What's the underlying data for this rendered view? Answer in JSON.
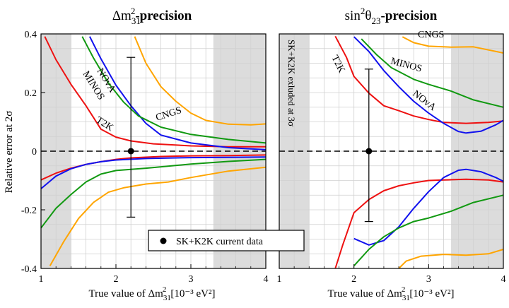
{
  "colors": {
    "background": "#ffffff",
    "grid": "#d0d0d0",
    "shade": "#dcdcdc",
    "T2K": "#ee1111",
    "NOvA": "#1111ee",
    "MINOS": "#119911",
    "CNGS": "#ffa500",
    "data": "#000000"
  },
  "chart_data": [
    {
      "type": "line",
      "title_prefix": "Δm",
      "title_sub": "31",
      "title_sup": "2",
      "title_suffix": "-precision",
      "xlabel_prefix": "True value of Δm",
      "xlabel_sub": "31",
      "xlabel_sup": "2",
      "xlabel_unit": "[10⁻³ eV²]",
      "ylabel": "Relative error at 2σ",
      "xlim": [
        1,
        4
      ],
      "ylim": [
        -0.4,
        0.4
      ],
      "x_ticks": [
        "1",
        "2",
        "3",
        "4"
      ],
      "y_ticks": [
        "-0.4",
        "-0.2",
        "0",
        "0.2",
        "0.4"
      ],
      "grid": true,
      "shaded_x_ranges": [
        [
          1,
          1.4
        ],
        [
          3.3,
          4
        ]
      ],
      "reference_line_y": 0,
      "series": [
        {
          "name": "T2K",
          "color_key": "T2K",
          "upper": [
            [
              1.05,
              0.391
            ],
            [
              1.2,
              0.312
            ],
            [
              1.4,
              0.228
            ],
            [
              1.6,
              0.155
            ],
            [
              1.8,
              0.075
            ],
            [
              2.0,
              0.048
            ],
            [
              2.2,
              0.035
            ],
            [
              2.5,
              0.025
            ],
            [
              3.0,
              0.018
            ],
            [
              3.5,
              0.015
            ],
            [
              4.0,
              0.015
            ]
          ],
          "lower": [
            [
              1.0,
              -0.098
            ],
            [
              1.2,
              -0.075
            ],
            [
              1.4,
              -0.058
            ],
            [
              1.6,
              -0.045
            ],
            [
              1.8,
              -0.036
            ],
            [
              2.0,
              -0.028
            ],
            [
              2.2,
              -0.023
            ],
            [
              2.6,
              -0.018
            ],
            [
              3.0,
              -0.016
            ],
            [
              3.5,
              -0.015
            ],
            [
              4.0,
              -0.013
            ]
          ]
        },
        {
          "name": "NOvA",
          "color_key": "NOvA",
          "upper": [
            [
              1.65,
              0.391
            ],
            [
              1.8,
              0.315
            ],
            [
              2.0,
              0.225
            ],
            [
              2.2,
              0.155
            ],
            [
              2.4,
              0.095
            ],
            [
              2.6,
              0.055
            ],
            [
              3.0,
              0.028
            ],
            [
              3.5,
              0.012
            ],
            [
              4.0,
              0.005
            ]
          ],
          "lower": [
            [
              1.0,
              -0.128
            ],
            [
              1.2,
              -0.085
            ],
            [
              1.4,
              -0.06
            ],
            [
              1.6,
              -0.045
            ],
            [
              1.8,
              -0.036
            ],
            [
              2.0,
              -0.03
            ],
            [
              2.4,
              -0.025
            ],
            [
              3.0,
              -0.022
            ],
            [
              3.5,
              -0.021
            ],
            [
              4.0,
              -0.02
            ]
          ]
        },
        {
          "name": "MINOS",
          "color_key": "MINOS",
          "upper": [
            [
              1.55,
              0.391
            ],
            [
              1.7,
              0.318
            ],
            [
              1.9,
              0.232
            ],
            [
              2.1,
              0.168
            ],
            [
              2.3,
              0.12
            ],
            [
              2.6,
              0.082
            ],
            [
              3.0,
              0.057
            ],
            [
              3.5,
              0.04
            ],
            [
              4.0,
              0.028
            ]
          ],
          "lower": [
            [
              1.0,
              -0.262
            ],
            [
              1.2,
              -0.195
            ],
            [
              1.4,
              -0.148
            ],
            [
              1.6,
              -0.105
            ],
            [
              1.8,
              -0.078
            ],
            [
              2.0,
              -0.066
            ],
            [
              2.4,
              -0.058
            ],
            [
              3.0,
              -0.044
            ],
            [
              3.5,
              -0.035
            ],
            [
              4.0,
              -0.028
            ]
          ]
        },
        {
          "name": "CNGS",
          "color_key": "CNGS",
          "upper": [
            [
              2.25,
              0.391
            ],
            [
              2.4,
              0.3
            ],
            [
              2.6,
              0.22
            ],
            [
              2.8,
              0.17
            ],
            [
              3.0,
              0.13
            ],
            [
              3.2,
              0.105
            ],
            [
              3.5,
              0.092
            ],
            [
              3.8,
              0.09
            ],
            [
              4.0,
              0.093
            ]
          ],
          "lower": [
            [
              1.12,
              -0.391
            ],
            [
              1.3,
              -0.31
            ],
            [
              1.5,
              -0.23
            ],
            [
              1.7,
              -0.175
            ],
            [
              1.9,
              -0.14
            ],
            [
              2.1,
              -0.125
            ],
            [
              2.4,
              -0.112
            ],
            [
              2.7,
              -0.105
            ],
            [
              3.0,
              -0.09
            ],
            [
              3.5,
              -0.068
            ],
            [
              4.0,
              -0.055
            ]
          ]
        }
      ],
      "data_point": {
        "x": 2.2,
        "y": 0,
        "err_up": 0.32,
        "err_down": -0.225
      },
      "legend": {
        "label": "SK+K2K current data",
        "position": "bottom-center"
      }
    },
    {
      "type": "line",
      "title_prefix": "sin",
      "title_sup": "2",
      "title_theta": "θ",
      "title_sub": "23",
      "title_suffix": "-precision",
      "xlabel_prefix": "True value of Δm",
      "xlabel_sub": "31",
      "xlabel_sup": "2",
      "xlabel_unit": "[10⁻³ eV²]",
      "xlim": [
        1,
        4
      ],
      "ylim": [
        -0.4,
        0.4
      ],
      "x_ticks": [
        "1",
        "2",
        "3",
        "4"
      ],
      "grid": true,
      "shaded_x_ranges": [
        [
          1,
          1.4
        ],
        [
          3.3,
          4
        ]
      ],
      "reference_line_y": 0,
      "excluded_note": "SK+K2K exluded at 3σ",
      "series": [
        {
          "name": "T2K",
          "color_key": "T2K",
          "upper": [
            [
              1.75,
              0.392
            ],
            [
              1.9,
              0.32
            ],
            [
              2.0,
              0.255
            ],
            [
              2.2,
              0.198
            ],
            [
              2.4,
              0.155
            ],
            [
              2.6,
              0.138
            ],
            [
              2.8,
              0.12
            ],
            [
              3.0,
              0.108
            ],
            [
              3.2,
              0.098
            ],
            [
              3.5,
              0.095
            ],
            [
              3.8,
              0.098
            ],
            [
              4.0,
              0.103
            ]
          ],
          "lower": [
            [
              1.75,
              -0.4
            ],
            [
              1.85,
              -0.32
            ],
            [
              2.0,
              -0.21
            ],
            [
              2.2,
              -0.165
            ],
            [
              2.4,
              -0.135
            ],
            [
              2.6,
              -0.118
            ],
            [
              2.8,
              -0.108
            ],
            [
              3.0,
              -0.1
            ],
            [
              3.2,
              -0.098
            ],
            [
              3.5,
              -0.096
            ],
            [
              3.8,
              -0.098
            ],
            [
              4.0,
              -0.105
            ]
          ]
        },
        {
          "name": "NOvA",
          "color_key": "NOvA",
          "upper": [
            [
              2.0,
              0.39
            ],
            [
              2.2,
              0.34
            ],
            [
              2.4,
              0.275
            ],
            [
              2.6,
              0.22
            ],
            [
              2.8,
              0.17
            ],
            [
              3.0,
              0.13
            ],
            [
              3.2,
              0.095
            ],
            [
              3.4,
              0.067
            ],
            [
              3.5,
              0.062
            ],
            [
              3.7,
              0.068
            ],
            [
              3.9,
              0.09
            ],
            [
              4.0,
              0.105
            ]
          ],
          "lower": [
            [
              2.0,
              -0.298
            ],
            [
              2.2,
              -0.32
            ],
            [
              2.4,
              -0.305
            ],
            [
              2.6,
              -0.258
            ],
            [
              2.8,
              -0.195
            ],
            [
              3.0,
              -0.138
            ],
            [
              3.2,
              -0.09
            ],
            [
              3.4,
              -0.065
            ],
            [
              3.5,
              -0.062
            ],
            [
              3.7,
              -0.07
            ],
            [
              3.9,
              -0.09
            ],
            [
              4.0,
              -0.103
            ]
          ]
        },
        {
          "name": "MINOS",
          "color_key": "MINOS",
          "upper": [
            [
              2.1,
              0.383
            ],
            [
              2.3,
              0.33
            ],
            [
              2.5,
              0.285
            ],
            [
              2.8,
              0.245
            ],
            [
              3.0,
              0.228
            ],
            [
              3.3,
              0.205
            ],
            [
              3.6,
              0.175
            ],
            [
              4.0,
              0.15
            ]
          ],
          "lower": [
            [
              2.0,
              -0.391
            ],
            [
              2.2,
              -0.335
            ],
            [
              2.4,
              -0.292
            ],
            [
              2.6,
              -0.262
            ],
            [
              2.8,
              -0.24
            ],
            [
              3.0,
              -0.228
            ],
            [
              3.3,
              -0.205
            ],
            [
              3.6,
              -0.175
            ],
            [
              4.0,
              -0.15
            ]
          ]
        },
        {
          "name": "CNGS",
          "color_key": "CNGS",
          "upper": [
            [
              2.65,
              0.39
            ],
            [
              2.8,
              0.37
            ],
            [
              3.0,
              0.358
            ],
            [
              3.3,
              0.355
            ],
            [
              3.6,
              0.356
            ],
            [
              4.0,
              0.335
            ]
          ],
          "lower": [
            [
              2.6,
              -0.4
            ],
            [
              2.7,
              -0.375
            ],
            [
              2.9,
              -0.358
            ],
            [
              3.2,
              -0.352
            ],
            [
              3.5,
              -0.355
            ],
            [
              3.8,
              -0.35
            ],
            [
              4.0,
              -0.335
            ]
          ]
        }
      ],
      "data_point": {
        "x": 2.2,
        "y": 0,
        "err_up": 0.28,
        "err_down": -0.24
      }
    }
  ]
}
